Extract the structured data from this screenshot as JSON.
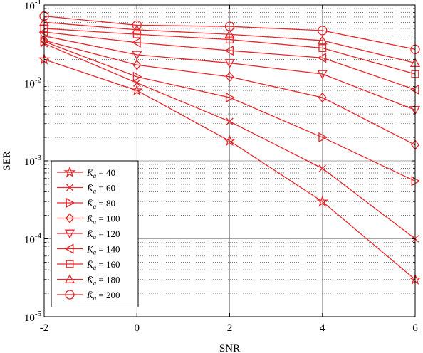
{
  "chart_data": {
    "type": "line",
    "x": [
      -2,
      0,
      2,
      4,
      6
    ],
    "xlabel": "SNR",
    "ylabel": "SER",
    "xlim": [
      -2,
      6
    ],
    "ylim": [
      1e-05,
      0.1
    ],
    "yscale": "log",
    "x_ticks": [
      "-2",
      "0",
      "2",
      "4",
      "6"
    ],
    "y_ticks": [
      {
        "base": "10",
        "exp": "-5",
        "value": 1e-05
      },
      {
        "base": "10",
        "exp": "-4",
        "value": 0.0001
      },
      {
        "base": "10",
        "exp": "-3",
        "value": 0.001
      },
      {
        "base": "10",
        "exp": "-2",
        "value": 0.01
      },
      {
        "base": "10",
        "exp": "-1",
        "value": 0.1
      }
    ],
    "grid": true,
    "legend_position": "bottom-left",
    "color": "#e8262b",
    "series": [
      {
        "name": "K̄a = 40",
        "k": "40",
        "marker": "star",
        "values": [
          0.02,
          0.008,
          0.0018,
          0.0003,
          3e-05
        ]
      },
      {
        "name": "K̄a = 60",
        "k": "60",
        "marker": "x",
        "values": [
          0.032,
          0.01,
          0.0032,
          0.0008,
          0.0001
        ]
      },
      {
        "name": "K̄a = 80",
        "k": "80",
        "marker": "triangle-right",
        "values": [
          0.034,
          0.012,
          0.0065,
          0.002,
          0.00055
        ]
      },
      {
        "name": "K̄a = 100",
        "k": "100",
        "marker": "diamond",
        "values": [
          0.035,
          0.017,
          0.012,
          0.0065,
          0.0016
        ]
      },
      {
        "name": "K̄a = 120",
        "k": "120",
        "marker": "triangle-down",
        "values": [
          0.04,
          0.023,
          0.018,
          0.013,
          0.0045
        ]
      },
      {
        "name": "K̄a = 140",
        "k": "140",
        "marker": "triangle-left",
        "values": [
          0.045,
          0.033,
          0.026,
          0.021,
          0.0082
        ]
      },
      {
        "name": "K̄a = 160",
        "k": "160",
        "marker": "square",
        "values": [
          0.05,
          0.042,
          0.036,
          0.028,
          0.013
        ]
      },
      {
        "name": "K̄a = 180",
        "k": "180",
        "marker": "triangle-up",
        "values": [
          0.06,
          0.048,
          0.042,
          0.035,
          0.018
        ]
      },
      {
        "name": "K̄a = 200",
        "k": "200",
        "marker": "circle",
        "values": [
          0.072,
          0.055,
          0.053,
          0.047,
          0.027
        ]
      }
    ]
  }
}
